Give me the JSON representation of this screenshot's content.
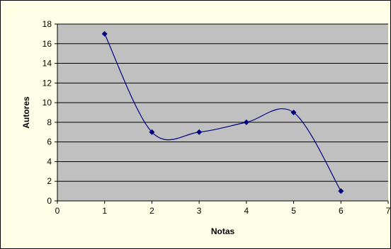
{
  "chart_data": {
    "type": "scatter",
    "title": "",
    "xlabel": "Notas",
    "ylabel": "Autores",
    "xlim": [
      0,
      7
    ],
    "ylim": [
      0,
      18
    ],
    "x_ticks": [
      "0",
      "1",
      "2",
      "3",
      "4",
      "5",
      "6",
      "7"
    ],
    "y_ticks": [
      "0",
      "2",
      "4",
      "6",
      "8",
      "10",
      "12",
      "14",
      "16",
      "18"
    ],
    "grid": "horizontal",
    "legend": "none",
    "smoothed_line": true,
    "series": [
      {
        "x": [
          1,
          2,
          3,
          4,
          5,
          6
        ],
        "y": [
          17,
          7,
          7,
          8,
          9,
          1
        ]
      }
    ],
    "colors": {
      "page_background": "#ffffe8",
      "plot_background": "#c0c0c0",
      "gridline": "#000000",
      "series": "#000080"
    }
  }
}
